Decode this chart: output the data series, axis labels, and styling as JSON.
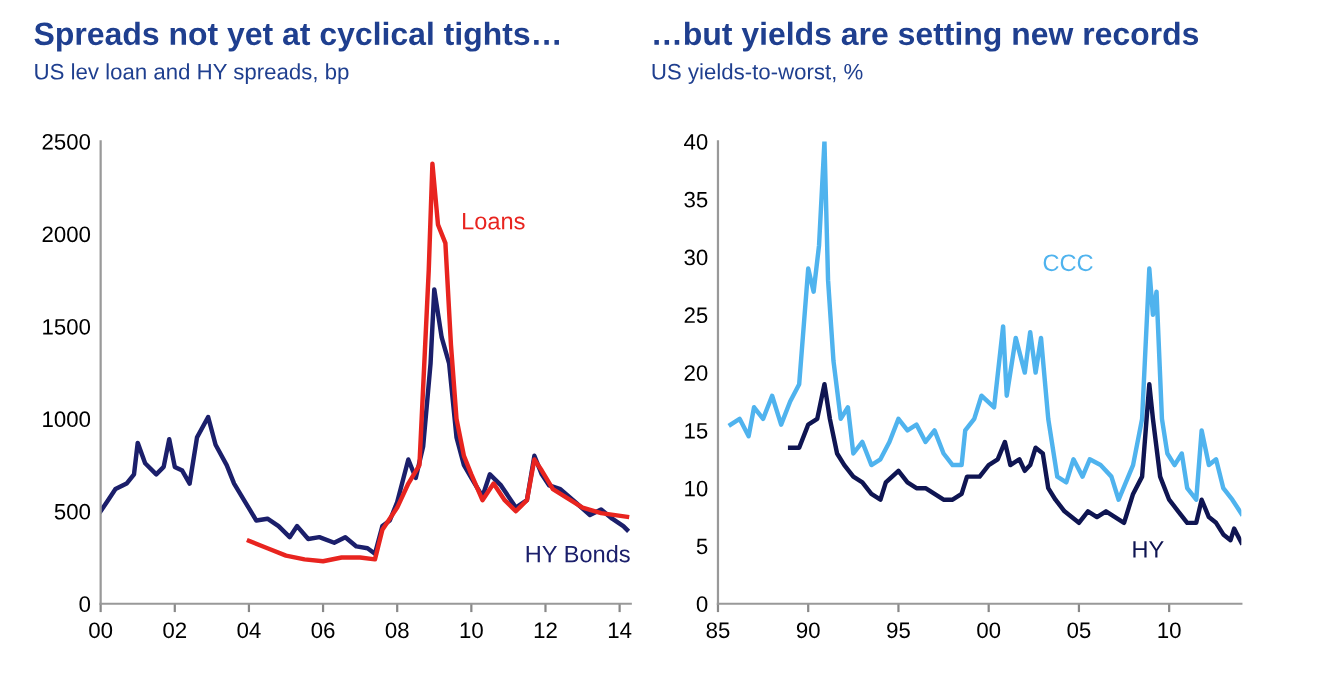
{
  "chart_data": [
    {
      "type": "line",
      "title": "Spreads not yet at cyclical tights…",
      "subtitle": "US lev loan and HY spreads, bp",
      "xlim": [
        2000,
        2014.3
      ],
      "xticks": [
        {
          "value": 2000,
          "label": "00"
        },
        {
          "value": 2002,
          "label": "02"
        },
        {
          "value": 2004,
          "label": "04"
        },
        {
          "value": 2006,
          "label": "06"
        },
        {
          "value": 2008,
          "label": "08"
        },
        {
          "value": 2010,
          "label": "10"
        },
        {
          "value": 2012,
          "label": "12"
        },
        {
          "value": 2014,
          "label": "14"
        }
      ],
      "ylim": [
        0,
        2500
      ],
      "yticks": [
        0,
        500,
        1000,
        1500,
        2000,
        2500
      ],
      "grid": false,
      "legend": false,
      "series": [
        {
          "name": "HY Bonds",
          "color": "#1b1f6b",
          "x": [
            2000.0,
            2000.2,
            2000.4,
            2000.7,
            2000.9,
            2001.0,
            2001.2,
            2001.5,
            2001.7,
            2001.85,
            2002.0,
            2002.2,
            2002.4,
            2002.6,
            2002.9,
            2003.1,
            2003.4,
            2003.6,
            2003.9,
            2004.2,
            2004.5,
            2004.8,
            2005.1,
            2005.3,
            2005.6,
            2005.9,
            2006.3,
            2006.6,
            2006.9,
            2007.2,
            2007.4,
            2007.6,
            2007.8,
            2008.0,
            2008.3,
            2008.5,
            2008.7,
            2008.9,
            2009.0,
            2009.2,
            2009.4,
            2009.6,
            2009.8,
            2010.0,
            2010.3,
            2010.5,
            2010.8,
            2011.2,
            2011.5,
            2011.7,
            2011.9,
            2012.1,
            2012.4,
            2012.8,
            2013.2,
            2013.5,
            2013.8,
            2014.1,
            2014.2
          ],
          "values": [
            500,
            560,
            620,
            650,
            700,
            870,
            760,
            700,
            740,
            890,
            740,
            720,
            650,
            900,
            1010,
            860,
            750,
            650,
            550,
            450,
            460,
            420,
            360,
            420,
            350,
            360,
            330,
            360,
            310,
            300,
            270,
            420,
            450,
            550,
            780,
            680,
            850,
            1300,
            1700,
            1440,
            1300,
            900,
            750,
            680,
            580,
            700,
            640,
            520,
            560,
            800,
            700,
            640,
            620,
            550,
            480,
            510,
            460,
            420,
            400
          ]
        },
        {
          "name": "Loans",
          "color": "#e8241f",
          "x": [
            2004.0,
            2004.5,
            2005.0,
            2005.5,
            2006.0,
            2006.5,
            2007.0,
            2007.4,
            2007.6,
            2008.0,
            2008.3,
            2008.6,
            2008.85,
            2008.95,
            2009.1,
            2009.3,
            2009.45,
            2009.6,
            2009.8,
            2010.0,
            2010.3,
            2010.6,
            2010.9,
            2011.2,
            2011.5,
            2011.7,
            2011.9,
            2012.2,
            2012.6,
            2013.0,
            2013.5,
            2014.2
          ],
          "values": [
            340,
            300,
            260,
            240,
            230,
            250,
            250,
            240,
            400,
            520,
            650,
            750,
            1800,
            2380,
            2050,
            1950,
            1400,
            1000,
            800,
            700,
            560,
            650,
            560,
            500,
            560,
            780,
            720,
            620,
            570,
            520,
            490,
            470
          ]
        }
      ]
    },
    {
      "type": "line",
      "title": "…but yields are setting new records",
      "subtitle": "US yields-to-worst, %",
      "xlim": [
        1985,
        2014
      ],
      "xticks": [
        {
          "value": 1985,
          "label": "85"
        },
        {
          "value": 1990,
          "label": "90"
        },
        {
          "value": 1995,
          "label": "95"
        },
        {
          "value": 2000,
          "label": "00"
        },
        {
          "value": 2005,
          "label": "05"
        },
        {
          "value": 2010,
          "label": "10"
        }
      ],
      "ylim": [
        0,
        40
      ],
      "yticks": [
        0,
        5,
        10,
        15,
        20,
        25,
        30,
        35,
        40
      ],
      "grid": false,
      "legend": false,
      "series": [
        {
          "name": "CCC",
          "color": "#4fb3ee",
          "x": [
            1985.7,
            1986.2,
            1986.7,
            1987.0,
            1987.5,
            1988.0,
            1988.5,
            1989.0,
            1989.5,
            1990.0,
            1990.3,
            1990.6,
            1990.9,
            1991.1,
            1991.4,
            1991.8,
            1992.2,
            1992.5,
            1993.0,
            1993.5,
            1994.0,
            1994.5,
            1995.0,
            1995.5,
            1996.0,
            1996.5,
            1997.0,
            1997.5,
            1998.0,
            1998.5,
            1998.7,
            1999.2,
            1999.6,
            2000.3,
            2000.8,
            2001.0,
            2001.5,
            2002.0,
            2002.3,
            2002.6,
            2002.9,
            2003.3,
            2003.8,
            2004.3,
            2004.7,
            2005.2,
            2005.6,
            2006.2,
            2006.8,
            2007.2,
            2007.6,
            2008.0,
            2008.5,
            2008.9,
            2009.1,
            2009.3,
            2009.6,
            2009.9,
            2010.3,
            2010.7,
            2011.0,
            2011.5,
            2011.8,
            2012.2,
            2012.6,
            2013.0,
            2013.5,
            2014.0
          ],
          "values": [
            15.5,
            16,
            14.5,
            17,
            16,
            18,
            15.5,
            17.5,
            19,
            29,
            27,
            31,
            40,
            28,
            21,
            16,
            17,
            13,
            14,
            12,
            12.5,
            14,
            16,
            15,
            15.5,
            14,
            15,
            13,
            12,
            12,
            15,
            16,
            18,
            17,
            24,
            18,
            23,
            20,
            23.5,
            20,
            23,
            16,
            11,
            10.5,
            12.5,
            11,
            12.5,
            12,
            11,
            9,
            10.5,
            12,
            16,
            29,
            25,
            27,
            16,
            13,
            12,
            13,
            10,
            9,
            15,
            12,
            12.5,
            10,
            9,
            7.8
          ]
        },
        {
          "name": "HY",
          "color": "#0f1552",
          "x": [
            1989.0,
            1989.5,
            1990.0,
            1990.5,
            1990.9,
            1991.2,
            1991.6,
            1992.0,
            1992.5,
            1993.0,
            1993.5,
            1994.0,
            1994.3,
            1995.0,
            1995.5,
            1996.0,
            1996.5,
            1997.0,
            1997.5,
            1998.0,
            1998.5,
            1998.8,
            1999.5,
            2000.0,
            2000.5,
            2000.9,
            2001.2,
            2001.7,
            2002.0,
            2002.3,
            2002.6,
            2003.0,
            2003.3,
            2003.7,
            2004.2,
            2004.6,
            2005.0,
            2005.5,
            2006.0,
            2006.5,
            2007.0,
            2007.5,
            2008.0,
            2008.5,
            2008.9,
            2009.1,
            2009.5,
            2010.0,
            2010.5,
            2011.0,
            2011.5,
            2011.8,
            2012.2,
            2012.6,
            2013.0,
            2013.4,
            2013.6,
            2014.0
          ],
          "values": [
            13.5,
            13.5,
            15.5,
            16,
            19,
            16,
            13,
            12,
            11,
            10.5,
            9.5,
            9,
            10.5,
            11.5,
            10.5,
            10,
            10,
            9.5,
            9,
            9,
            9.5,
            11,
            11,
            12,
            12.5,
            14,
            12,
            12.5,
            11.5,
            12,
            13.5,
            13,
            10,
            9,
            8,
            7.5,
            7,
            8,
            7.5,
            8,
            7.5,
            7,
            9.5,
            11,
            19,
            16,
            11,
            9,
            8,
            7,
            7,
            9,
            7.5,
            7,
            6,
            5.5,
            6.5,
            5.3
          ]
        }
      ]
    }
  ]
}
